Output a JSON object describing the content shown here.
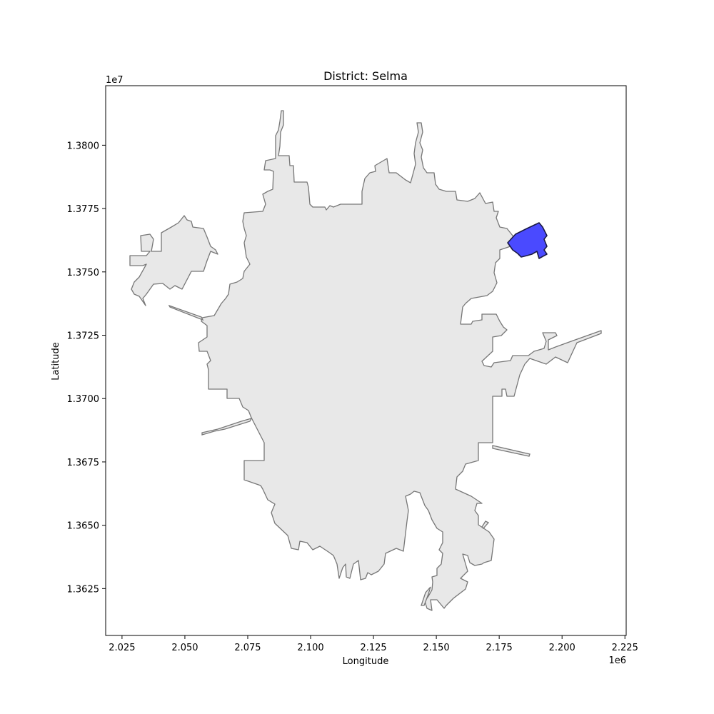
{
  "chart_data": {
    "type": "map",
    "title": "District: Selma",
    "xlabel": "Longitude",
    "ylabel": "Latitude",
    "x_offset_label": "1e6",
    "y_offset_label": "1e7",
    "xlim": [
      2.0185,
      2.2255
    ],
    "ylim": [
      1.36065,
      1.38235
    ],
    "x_ticks": [
      "2.025",
      "2.050",
      "2.075",
      "2.100",
      "2.125",
      "2.150",
      "2.175",
      "2.200",
      "2.225"
    ],
    "y_ticks": [
      "1.3625",
      "1.3650",
      "1.3675",
      "1.3700",
      "1.3725",
      "1.3750",
      "1.3775",
      "1.3800"
    ],
    "region_fill": "#e8e8e8",
    "region_stroke": "#777777",
    "highlight_fill": "#4a4aff",
    "highlight_stroke": "#1a1a44",
    "highlighted_district": "Selma"
  }
}
